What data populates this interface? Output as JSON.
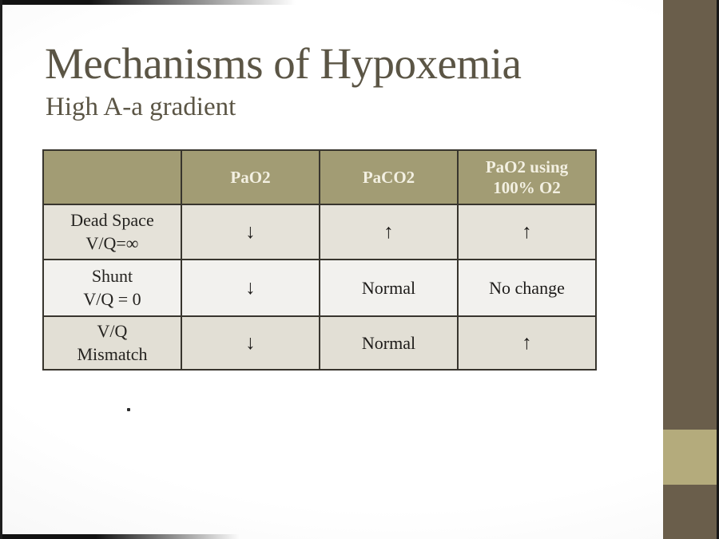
{
  "slide": {
    "title": "Mechanisms of Hypoxemia",
    "subtitle": "High A-a gradient",
    "colors": {
      "title_text": "#5b5545",
      "table_header_bg": "#a29c74",
      "table_header_text": "#f3f0e2",
      "row_band_light": "#f2f1ee",
      "row_band_dark": "#e5e2d9",
      "table_border": "#38352e",
      "side_band_brown": "#6a5e4b",
      "side_band_khaki": "#b4ab7c"
    }
  },
  "table": {
    "headers": [
      "",
      "PaO2",
      "PaCO2",
      "PaO2 using 100% O2"
    ],
    "rows": [
      {
        "label_line1": "Dead Space",
        "label_line2": "V/Q=∞",
        "pao2": "↓",
        "paco2": "↑",
        "pao2_100": "↑"
      },
      {
        "label_line1": "Shunt",
        "label_line2": "V/Q = 0",
        "pao2": "↓",
        "paco2": "Normal",
        "pao2_100": "No change"
      },
      {
        "label_line1": "V/Q",
        "label_line2": "Mismatch",
        "pao2": "↓",
        "paco2": "Normal",
        "pao2_100": "↑"
      }
    ]
  }
}
